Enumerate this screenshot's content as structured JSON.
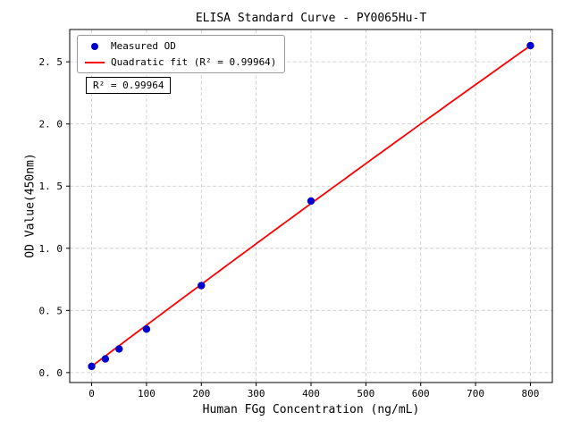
{
  "chart_data": {
    "type": "scatter",
    "title": "ELISA Standard Curve - PY0065Hu-T",
    "xlabel": "Human FGg Concentration (ng/mL)",
    "ylabel": "OD Value(450nm)",
    "xlim": [
      -40,
      840
    ],
    "ylim": [
      -0.08,
      2.76
    ],
    "x_ticks": [
      0,
      100,
      200,
      300,
      400,
      500,
      600,
      700,
      800
    ],
    "x_tick_labels": [
      "0",
      "100",
      "200",
      "300",
      "400",
      "500",
      "600",
      "700",
      "800"
    ],
    "y_ticks": [
      0.0,
      0.5,
      1.0,
      1.5,
      2.0,
      2.5
    ],
    "y_tick_labels": [
      "0. 0",
      "0. 5",
      "1. 0",
      "1. 5",
      "2. 0",
      "2. 5"
    ],
    "grid": true,
    "grid_color": "#c8c8c8",
    "series": [
      {
        "name": "Measured OD",
        "type": "scatter",
        "color": "#0000CD",
        "x": [
          0,
          25,
          50,
          100,
          200,
          400,
          800
        ],
        "y": [
          0.05,
          0.11,
          0.19,
          0.35,
          0.7,
          1.38,
          2.63
        ]
      },
      {
        "name": "Quadratic fit (R² = 0.99964)",
        "type": "line",
        "color": "#FF0000",
        "x_range": [
          0,
          800
        ],
        "fit_coefficients": {
          "a": 0.05,
          "b": 0.003325,
          "c": -1.25e-07
        }
      }
    ],
    "legend": {
      "position": "upper-left",
      "entries": [
        "Measured OD",
        "Quadratic fit (R² = 0.99964)"
      ]
    },
    "annotation": "R² = 0.99964"
  }
}
